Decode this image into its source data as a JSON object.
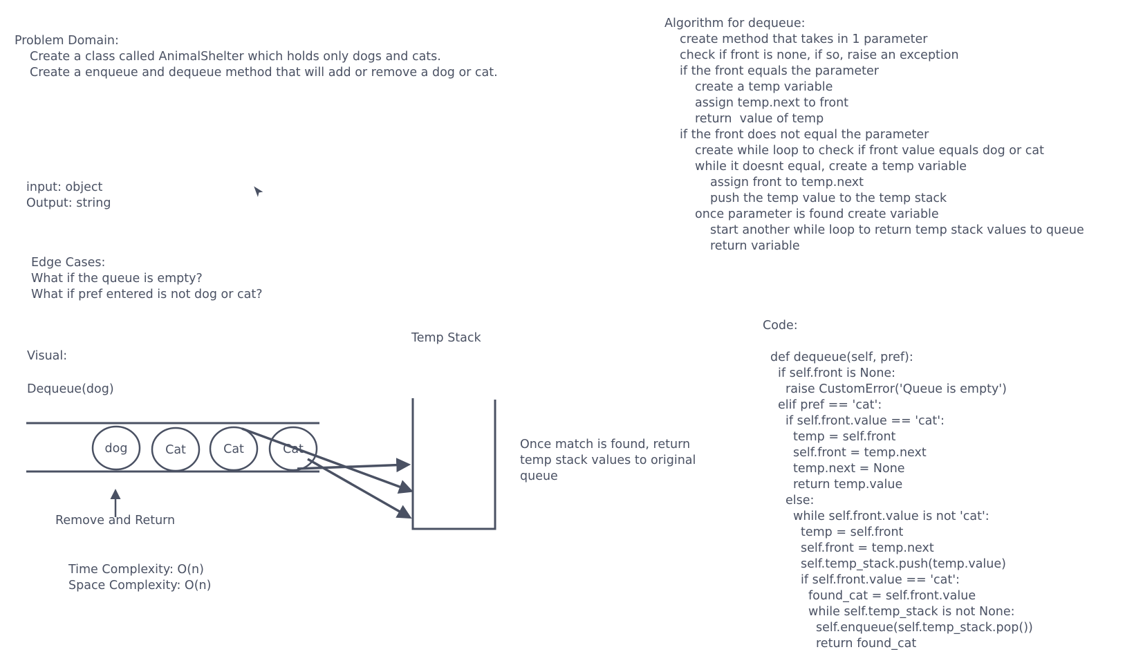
{
  "problem_domain": {
    "heading": "Problem Domain:",
    "lines": [
      "Create a class called AnimalShelter which holds only dogs and cats.",
      "Create a enqueue and dequeue method that will add or remove a dog or cat."
    ]
  },
  "io": {
    "input": "input: object",
    "output": "Output: string"
  },
  "edge_cases": {
    "heading": "Edge Cases:",
    "lines": [
      "What if the queue is empty?",
      "What if pref entered is not dog or cat?"
    ]
  },
  "visual": {
    "heading": "Visual:",
    "call": "Dequeue(dog)",
    "nodes": [
      "dog",
      "Cat",
      "Cat",
      "Cat"
    ],
    "remove_label": "Remove and Return",
    "stack_label": "Temp Stack",
    "note": [
      "Once match is found, return",
      "temp stack values to original",
      "queue"
    ]
  },
  "complexity": {
    "time": "Time Complexity: O(n)",
    "space": "Space Complexity: O(n)"
  },
  "algorithm": {
    "heading": "Algorithm for dequeue:",
    "lines": [
      "create method that takes in 1 parameter",
      "check if front is none, if so, raise an exception",
      "if the front equals the parameter",
      "create a temp variable",
      "assign temp.next to front",
      "return  value of temp",
      "if the front does not equal the parameter",
      "create while loop to check if front value equals dog or cat",
      "while it doesnt equal, create a temp variable",
      "assign front to temp.next",
      "push the temp value to the temp stack",
      "once parameter is found create variable",
      "start another while loop to return temp stack values to queue",
      "return variable"
    ]
  },
  "code": {
    "heading": "Code:",
    "lines": [
      "def dequeue(self, pref):",
      "if self.front is None:",
      "raise CustomError('Queue is empty')",
      "elif pref == 'cat':",
      "if self.front.value == 'cat':",
      "temp = self.front",
      "self.front = temp.next",
      "temp.next = None",
      "return temp.value",
      "else:",
      "while self.front.value is not 'cat':",
      "temp = self.front",
      "self.front = temp.next",
      "self.temp_stack.push(temp.value)",
      "if self.front.value == 'cat':",
      "found_cat = self.front.value",
      "while self.temp_stack is not None:",
      "self.enqueue(self.temp_stack.pop())",
      "return found_cat"
    ]
  },
  "colors": {
    "ink": "#4a5163",
    "background": "#ffffff"
  }
}
